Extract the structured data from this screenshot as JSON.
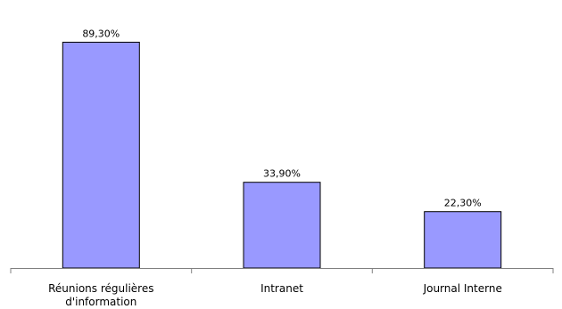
{
  "chart_data": {
    "type": "bar",
    "categories": [
      [
        "Réunions régulières",
        "d'information"
      ],
      [
        "Intranet"
      ],
      [
        "Journal Interne"
      ]
    ],
    "values": [
      89.3,
      33.9,
      22.3
    ],
    "data_labels": [
      "89,30%",
      "33,90%",
      "22,30%"
    ],
    "ylim": [
      0,
      100
    ],
    "grid": false,
    "legend": "none",
    "colors": {
      "bar_fill": "#9999ff",
      "bar_stroke": "#000000",
      "axis": "#808080"
    }
  }
}
